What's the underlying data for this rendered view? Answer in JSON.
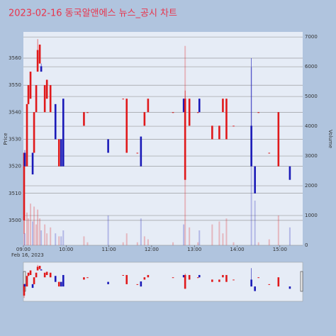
{
  "chart_data": {
    "type": "candlestick",
    "title": "2023-02-16 동국알앤에스 뉴스_공시 차트",
    "y_label": "Price",
    "y2_label": "Volume",
    "date_label": "Feb 16, 2023",
    "up_color": "#e0191b",
    "down_color": "#1a1ab8",
    "x": [
      "09:01",
      "09:02",
      "09:05",
      "09:07",
      "09:10",
      "09:13",
      "09:15",
      "09:18",
      "09:20",
      "09:23",
      "09:25",
      "09:30",
      "09:33",
      "09:38",
      "09:45",
      "09:50",
      "09:53",
      "09:56",
      "10:25",
      "10:30",
      "10:59",
      "11:20",
      "11:25",
      "11:40",
      "11:45",
      "11:50",
      "11:55",
      "12:30",
      "12:45",
      "12:47",
      "12:53",
      "13:05",
      "13:07",
      "13:25",
      "13:35",
      "13:40",
      "13:45",
      "13:55",
      "14:20",
      "14:25",
      "14:30",
      "14:45",
      "14:58",
      "15:14"
    ],
    "open": [
      3500,
      3525,
      3520,
      3543,
      3545,
      3525,
      3525,
      3540,
      3555,
      3558,
      3557,
      3540,
      3545,
      3540,
      3543,
      3520,
      3530,
      3545,
      3535,
      3540,
      3530,
      3545,
      3525,
      3525,
      3531,
      3535,
      3540,
      3540,
      3545,
      3515,
      3535,
      3540,
      3545,
      3530,
      3530,
      3540,
      3530,
      3535,
      3535,
      3520,
      3540,
      3525,
      3520,
      3520
    ],
    "high": [
      3525,
      3526,
      3543,
      3550,
      3555,
      3525,
      3540,
      3550,
      3567,
      3565,
      3558,
      3550,
      3552,
      3550,
      3543,
      3530,
      3530,
      3545,
      3540,
      3540,
      3530,
      3545,
      3545,
      3525,
      3531,
      3540,
      3545,
      3540,
      3545,
      3548,
      3545,
      3540,
      3545,
      3535,
      3535,
      3545,
      3545,
      3535,
      3560,
      3520,
      3540,
      3525,
      3540,
      3520
    ],
    "low": [
      3495,
      3520,
      3520,
      3543,
      3545,
      3517,
      3525,
      3540,
      3555,
      3558,
      3555,
      3540,
      3545,
      3540,
      3530,
      3520,
      3520,
      3520,
      3535,
      3540,
      3525,
      3545,
      3525,
      3525,
      3520,
      3535,
      3540,
      3540,
      3540,
      3515,
      3535,
      3540,
      3540,
      3530,
      3530,
      3540,
      3530,
      3535,
      3520,
      3510,
      3540,
      3525,
      3520,
      3515
    ],
    "close": [
      3525,
      3520,
      3543,
      3550,
      3555,
      3517,
      3540,
      3550,
      3563,
      3565,
      3555,
      3550,
      3552,
      3550,
      3530,
      3530,
      3520,
      3520,
      3540,
      3540,
      3525,
      3545,
      3545,
      3525,
      3520,
      3540,
      3545,
      3540,
      3540,
      3545,
      3545,
      3540,
      3540,
      3535,
      3535,
      3545,
      3545,
      3535,
      3520,
      3510,
      3540,
      3525,
      3540,
      3515
    ],
    "volume": [
      1300,
      400,
      1100,
      900,
      1400,
      800,
      1300,
      700,
      1200,
      900,
      500,
      700,
      400,
      600,
      400,
      300,
      300,
      500,
      300,
      100,
      1000,
      100,
      400,
      100,
      900,
      300,
      200,
      100,
      700,
      6700,
      600,
      100,
      500,
      700,
      800,
      400,
      900,
      100,
      5980,
      1500,
      100,
      200,
      1000,
      600
    ],
    "xlim": [
      "09:00",
      "15:32"
    ],
    "xticks": [
      "09:00",
      "10:00",
      "11:00",
      "12:00",
      "13:00",
      "14:00",
      "15:00"
    ],
    "ylim": [
      3490.8,
      3569.7
    ],
    "yticks": [
      3500,
      3510,
      3520,
      3530,
      3540,
      3550,
      3560
    ],
    "y2lim": [
      0,
      7170
    ],
    "y2ticks": [
      0,
      1000,
      2000,
      3000,
      4000,
      5000,
      6000,
      7000
    ]
  }
}
